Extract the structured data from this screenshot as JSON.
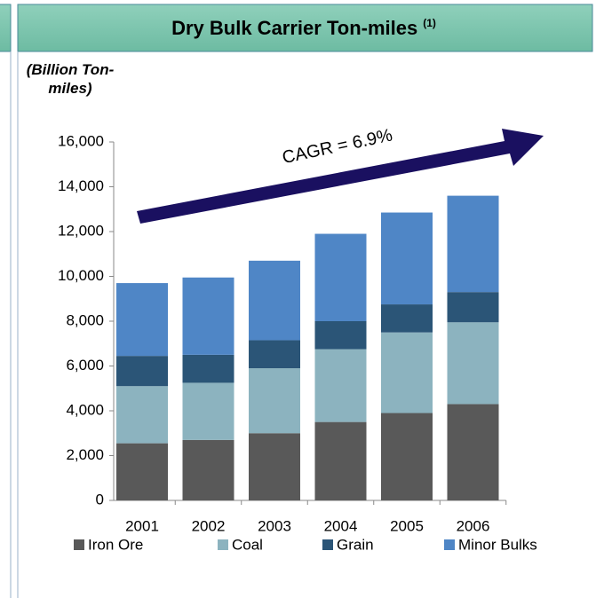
{
  "chart_data": {
    "type": "stacked_bar",
    "title": "Dry Bulk Carrier Ton-miles",
    "title_note": "(1)",
    "y_label": "(Billion Ton-miles)",
    "annotation": "CAGR = 6.9%",
    "categories": [
      "2001",
      "2002",
      "2003",
      "2004",
      "2005",
      "2006"
    ],
    "series": [
      {
        "name": "Iron Ore",
        "color": "#595959",
        "values": [
          2550,
          2700,
          3000,
          3500,
          3900,
          4300
        ]
      },
      {
        "name": "Coal",
        "color": "#8cb3bf",
        "values": [
          2550,
          2550,
          2900,
          3250,
          3600,
          3650
        ]
      },
      {
        "name": "Grain",
        "color": "#2b5577",
        "values": [
          1350,
          1250,
          1250,
          1250,
          1250,
          1350
        ]
      },
      {
        "name": "Minor Bulks",
        "color": "#4f86c6",
        "values": [
          3250,
          3450,
          3550,
          3900,
          4100,
          4300
        ]
      }
    ],
    "ylim": [
      0,
      16000
    ],
    "yticks": [
      0,
      {
        "value": 2000,
        "label": "2,000"
      },
      {
        "value": 4000,
        "label": "4,000"
      },
      {
        "value": 6000,
        "label": "6,000"
      },
      {
        "value": 8000,
        "label": "8,000"
      },
      {
        "value": 10000,
        "label": "10,000"
      },
      {
        "value": 12000,
        "label": "12,000"
      },
      {
        "value": 14000,
        "label": "14,000"
      },
      {
        "value": 16000,
        "label": "16,000"
      }
    ]
  }
}
